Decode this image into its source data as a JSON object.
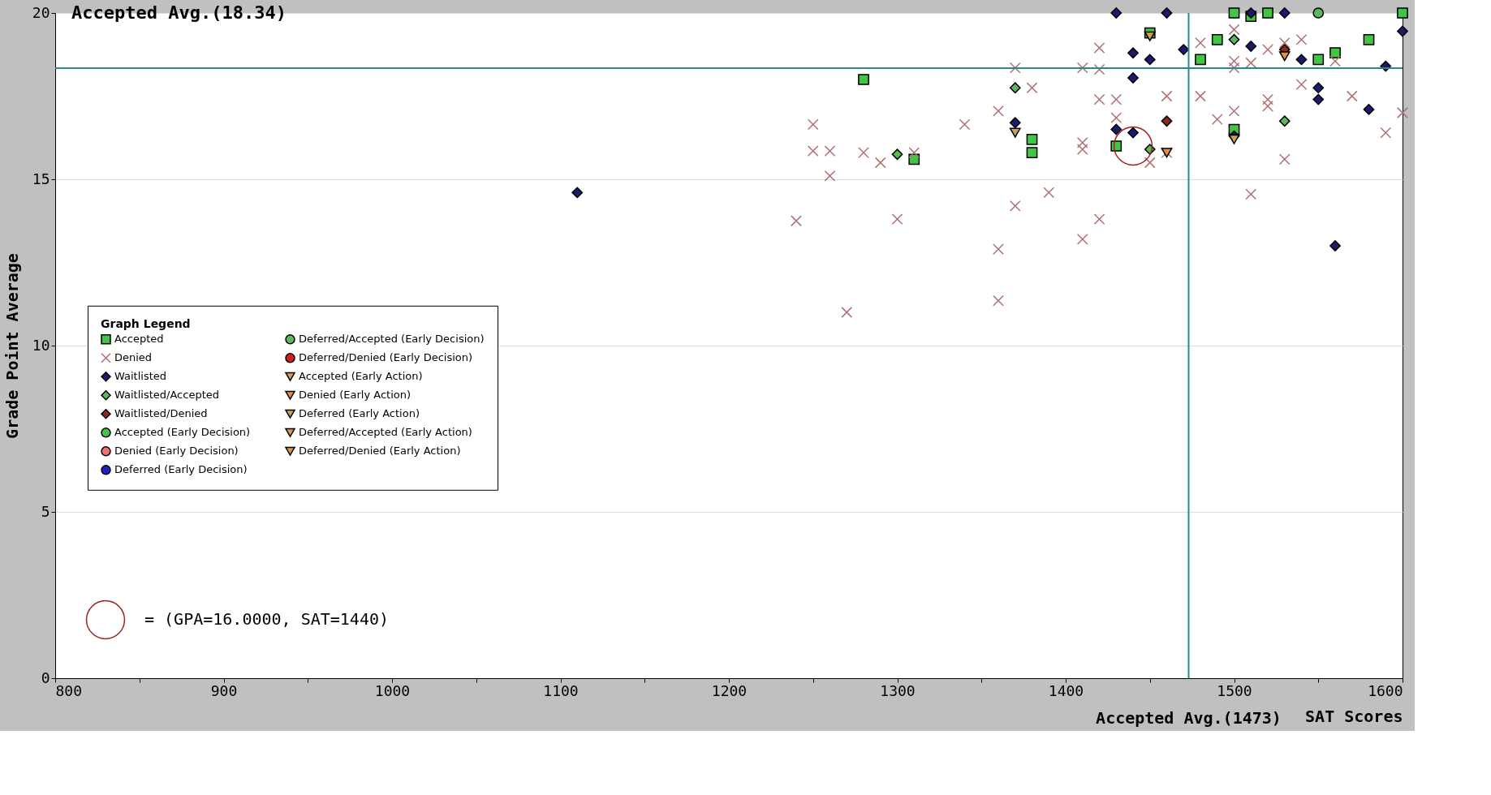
{
  "chart_data": {
    "type": "scatter",
    "xlabel": "SAT Scores",
    "ylabel": "Grade Point Average",
    "legend_title": "Graph Legend",
    "xlim": [
      800,
      1600
    ],
    "ylim": [
      0,
      20
    ],
    "xticks": [
      800,
      {
        "value": 850,
        "label": null
      },
      900,
      {
        "value": 950,
        "label": null
      },
      1000,
      {
        "value": 1050,
        "label": null
      },
      1100,
      {
        "value": 1150,
        "label": null
      },
      1200,
      {
        "value": 1250,
        "label": null
      },
      1300,
      {
        "value": 1350,
        "label": null
      },
      1400,
      {
        "value": 1450,
        "label": null
      },
      1500,
      {
        "value": 1550,
        "label": null
      },
      1600
    ],
    "yticks": [
      0,
      5,
      10,
      15,
      20
    ],
    "grid": "y",
    "legend": "bottom left",
    "ref_lines": [
      {
        "axis": "y",
        "value": 18.34,
        "label": "Accepted Avg.(18.34)",
        "color": "#2a8a8a"
      },
      {
        "axis": "x",
        "value": 1473,
        "label": "Accepted Avg.(1473)",
        "color": "#2a8a8a"
      }
    ],
    "annotations": [
      "=  (GPA=16.0000, SAT=1440)"
    ],
    "series": [
      {
        "name": "Accepted",
        "color": "#44c444",
        "marker": "square",
        "x": [
          1280,
          1310,
          1380,
          1380,
          1430,
          1450,
          1480,
          1490,
          1500,
          1510,
          1520,
          1500,
          1550,
          1560,
          1580,
          1600
        ],
        "values": [
          18.0,
          15.6,
          16.2,
          15.8,
          16.0,
          19.4,
          18.6,
          19.2,
          20,
          19.9,
          20,
          16.5,
          18.6,
          18.8,
          19.2,
          20
        ]
      },
      {
        "name": "Denied",
        "color": "#b07070",
        "marker": "cross",
        "x": [
          1250,
          1250,
          1260,
          1260,
          1240,
          1270,
          1280,
          1290,
          1300,
          1310,
          1340,
          1360,
          1370,
          1380,
          1370,
          1360,
          1360,
          1390,
          1410,
          1410,
          1410,
          1420,
          1410,
          1420,
          1420,
          1420,
          1430,
          1430,
          1460,
          1450,
          1460,
          1480,
          1490,
          1500,
          1500,
          1500,
          1510,
          1500,
          1520,
          1520,
          1530,
          1510,
          1540,
          1560,
          1570,
          1590,
          1600,
          1540,
          1530,
          1480,
          1520
        ],
        "values": [
          16.65,
          15.85,
          15.85,
          15.1,
          13.75,
          11.0,
          15.8,
          15.5,
          13.8,
          15.8,
          16.65,
          17.05,
          18.35,
          17.75,
          14.2,
          12.9,
          11.35,
          14.6,
          16.1,
          15.9,
          13.2,
          13.8,
          18.35,
          18.95,
          18.3,
          17.4,
          17.4,
          16.85,
          17.5,
          15.5,
          15.8,
          17.5,
          16.8,
          17.05,
          18.35,
          18.55,
          18.5,
          19.5,
          17.2,
          17.4,
          15.6,
          14.55,
          17.85,
          18.55,
          17.5,
          16.4,
          17.0,
          19.2,
          19.1,
          19.1,
          18.9
        ]
      },
      {
        "name": "Waitlisted",
        "color": "#1a1a70",
        "marker": "diamond",
        "x": [
          1110,
          1430,
          1460,
          1440,
          1450,
          1470,
          1440,
          1430,
          1440,
          1370,
          1510,
          1530,
          1510,
          1540,
          1500,
          1550,
          1550,
          1580,
          1590,
          1600,
          1560
        ],
        "values": [
          14.6,
          20,
          20,
          18.8,
          18.6,
          18.9,
          18.05,
          16.5,
          16.4,
          16.7,
          20,
          20,
          19.0,
          18.6,
          16.3,
          17.75,
          17.4,
          17.1,
          18.4,
          19.45,
          13.0
        ]
      },
      {
        "name": "Waitlisted/Accepted",
        "color": "#5cb85c",
        "marker": "diamond",
        "x": [
          1370,
          1300,
          1500,
          1530,
          1450
        ],
        "values": [
          17.75,
          15.75,
          19.2,
          16.75,
          15.9
        ]
      },
      {
        "name": "Waitlisted/Denied",
        "color": "#8b2a1a",
        "marker": "diamond",
        "x": [
          1460,
          1530
        ],
        "values": [
          16.75,
          18.9
        ]
      },
      {
        "name": "Accepted (Early Decision)",
        "color": "#44c444",
        "marker": "circle"
      },
      {
        "name": "Denied (Early Decision)",
        "color": "#f07070",
        "marker": "circle"
      },
      {
        "name": "Deferred (Early Decision)",
        "color": "#2020c0",
        "marker": "circle"
      },
      {
        "name": "Deferred/Accepted (Early Decision)",
        "color": "#5cb85c",
        "marker": "circle",
        "x": [
          1550
        ],
        "values": [
          20
        ]
      },
      {
        "name": "Deferred/Denied (Early Decision)",
        "color": "#d02020",
        "marker": "circle"
      },
      {
        "name": "Accepted (Early Action)",
        "color": "#d4a050",
        "marker": "triangle",
        "x": [
          1450
        ],
        "values": [
          19.3
        ]
      },
      {
        "name": "Denied (Early Action)",
        "color": "#e09040",
        "marker": "triangle",
        "x": [
          1460
        ],
        "values": [
          15.8
        ]
      },
      {
        "name": "Deferred (Early Action)",
        "color": "#c8a060",
        "marker": "triangle",
        "x": [
          1370,
          1500
        ],
        "values": [
          16.4,
          16.2
        ]
      },
      {
        "name": "Deferred/Accepted (Early Action)",
        "color": "#d8a048",
        "marker": "triangle"
      },
      {
        "name": "Deferred/Denied (Early Action)",
        "color": "#d89848",
        "marker": "triangle",
        "x": [
          1530
        ],
        "values": [
          18.7
        ]
      },
      {
        "color": "#a02020",
        "marker": "circle",
        "x": [
          1440
        ],
        "values": [
          16
        ]
      }
    ]
  }
}
